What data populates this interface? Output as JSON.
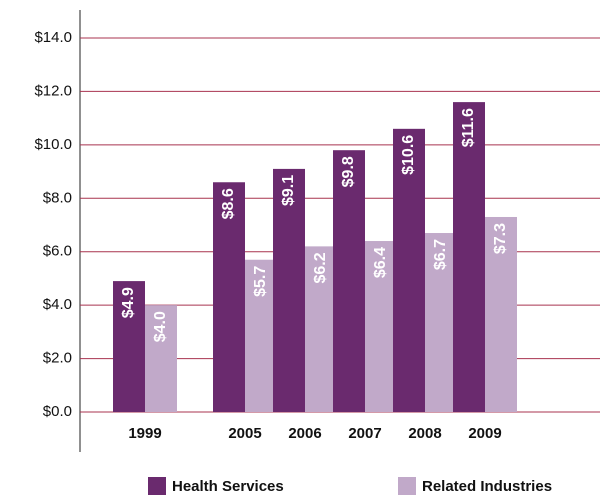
{
  "chart_data": {
    "type": "bar",
    "categories": [
      "1999",
      "2005",
      "2006",
      "2007",
      "2008",
      "2009"
    ],
    "series": [
      {
        "name": "Health Services",
        "color": "#6a2a6e",
        "values": [
          4.9,
          8.6,
          9.1,
          9.8,
          10.6,
          11.6
        ],
        "value_labels": [
          "$4.9",
          "$8.6",
          "$9.1",
          "$9.8",
          "$10.6",
          "$11.6"
        ]
      },
      {
        "name": "Related Industries",
        "color": "#c1a9c9",
        "values": [
          4.0,
          5.7,
          6.2,
          6.4,
          6.7,
          7.3
        ],
        "value_labels": [
          "$4.0",
          "$5.7",
          "$6.2",
          "$6.4",
          "$6.7",
          "$7.3"
        ]
      }
    ],
    "ylim": [
      0,
      14
    ],
    "yticks": [
      {
        "value": 0,
        "label": "$0.0"
      },
      {
        "value": 2,
        "label": "$2.0"
      },
      {
        "value": 4,
        "label": "$4.0"
      },
      {
        "value": 6,
        "label": "$6.0"
      },
      {
        "value": 8,
        "label": "$8.0"
      },
      {
        "value": 10,
        "label": "$10.0"
      },
      {
        "value": 12,
        "label": "$12.0"
      },
      {
        "value": 14,
        "label": "$14.0"
      }
    ],
    "grid": true,
    "legend": "bottom"
  }
}
